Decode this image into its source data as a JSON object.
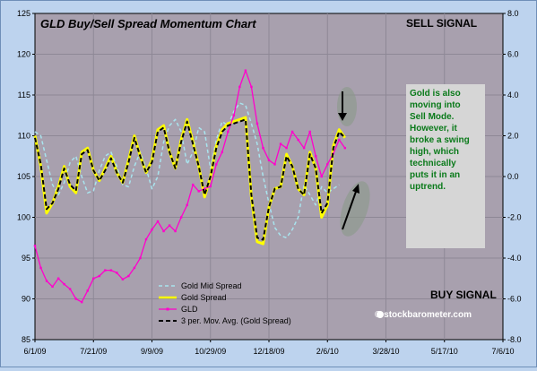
{
  "chart_data": {
    "type": "line",
    "title": "GLD Buy/Sell Spread Momentum Chart",
    "x_ticks": [
      "6/1/09",
      "7/21/09",
      "9/9/09",
      "10/29/09",
      "12/18/09",
      "2/6/10",
      "3/28/10",
      "5/17/10",
      "7/6/10"
    ],
    "x_range": [
      "6/1/09",
      "7/6/10"
    ],
    "y_left": {
      "ticks": [
        85,
        90,
        95,
        100,
        105,
        110,
        115,
        120,
        125
      ],
      "range": [
        85,
        125
      ]
    },
    "y_right": {
      "ticks": [
        "-8.0",
        "-6.0",
        "-4.0",
        "-2.0",
        "0.0",
        "2.0",
        "4.0",
        "6.0",
        "8.0"
      ],
      "range": [
        -8,
        8
      ]
    },
    "grid": true,
    "legend_position": "bottom-center",
    "annotations": {
      "sell_signal": "SELL SIGNAL",
      "buy_signal": "BUY SIGNAL",
      "note": "Gold is also moving into Sell Mode. However, it broke a swing high, which technically puts it in an uptrend.",
      "watermark": "© stockbarometer.com"
    },
    "series": [
      {
        "name": "Gold Mid Spread",
        "axis": "right",
        "color": "#a8e4ee",
        "dash": true,
        "x": [
          "6/1/09",
          "6/6/09",
          "6/11/09",
          "6/16/09",
          "6/21/09",
          "6/26/09",
          "7/1/09",
          "7/6/09",
          "7/11/09",
          "7/16/09",
          "7/21/09",
          "7/26/09",
          "7/31/09",
          "8/5/09",
          "8/10/09",
          "8/15/09",
          "8/20/09",
          "8/25/09",
          "8/30/09",
          "9/4/09",
          "9/9/09",
          "9/14/09",
          "9/19/09",
          "9/24/09",
          "9/29/09",
          "10/4/09",
          "10/9/09",
          "10/14/09",
          "10/19/09",
          "10/24/09",
          "10/29/09",
          "11/3/09",
          "11/8/09",
          "11/13/09",
          "11/18/09",
          "11/23/09",
          "11/28/09",
          "12/3/09",
          "12/8/09",
          "12/13/09",
          "12/18/09",
          "12/23/09",
          "12/28/09",
          "1/2/10",
          "1/7/10",
          "1/12/10",
          "1/17/10",
          "1/22/10",
          "1/27/10",
          "2/1/10",
          "2/6/10",
          "2/11/10",
          "2/16/10"
        ],
        "y": [
          2.2,
          2.0,
          0.8,
          -0.4,
          -0.9,
          -0.3,
          0.7,
          1.0,
          0.0,
          -0.8,
          -0.7,
          0.3,
          1.0,
          1.2,
          0.5,
          -0.4,
          -0.5,
          0.5,
          1.2,
          0.4,
          -0.6,
          0.0,
          1.7,
          2.5,
          2.8,
          2.2,
          0.6,
          1.2,
          2.4,
          2.2,
          0.4,
          1.8,
          2.7,
          2.5,
          3.2,
          3.6,
          3.5,
          2.6,
          1.6,
          0.0,
          -1.3,
          -2.5,
          -2.9,
          -3.0,
          -2.6,
          -2.0,
          -0.4,
          -0.9,
          -1.4,
          -0.5,
          -0.8,
          -0.6,
          -0.4
        ]
      },
      {
        "name": "Gold  Spread",
        "axis": "right",
        "color": "#ffff00",
        "dash": false,
        "x": [
          "6/1/09",
          "6/6/09",
          "6/11/09",
          "6/16/09",
          "6/21/09",
          "6/26/09",
          "7/1/09",
          "7/6/09",
          "7/11/09",
          "7/16/09",
          "7/21/09",
          "7/26/09",
          "7/31/09",
          "8/5/09",
          "8/10/09",
          "8/15/09",
          "8/20/09",
          "8/25/09",
          "8/30/09",
          "9/4/09",
          "9/9/09",
          "9/14/09",
          "9/19/09",
          "9/24/09",
          "9/29/09",
          "10/4/09",
          "10/9/09",
          "10/14/09",
          "10/19/09",
          "10/24/09",
          "10/29/09",
          "11/3/09",
          "11/8/09",
          "11/13/09",
          "11/18/09",
          "11/23/09",
          "11/28/09",
          "12/3/09",
          "12/8/09",
          "12/13/09",
          "12/18/09",
          "12/23/09",
          "12/28/09",
          "1/2/10",
          "1/7/10",
          "1/12/10",
          "1/17/10",
          "1/22/10",
          "1/27/10",
          "2/1/10",
          "2/6/10",
          "2/11/10",
          "2/16/10",
          "2/21/10"
        ],
        "y": [
          2.0,
          0.5,
          -1.8,
          -1.3,
          -0.5,
          0.5,
          -0.5,
          -0.8,
          1.2,
          1.4,
          0.3,
          -0.2,
          0.4,
          1.0,
          0.2,
          -0.3,
          0.8,
          2.0,
          1.0,
          0.2,
          0.8,
          2.3,
          2.5,
          1.2,
          0.4,
          1.8,
          2.8,
          1.7,
          0.5,
          -1.0,
          0.0,
          1.5,
          2.3,
          2.6,
          2.7,
          2.8,
          2.9,
          -1.0,
          -3.2,
          -3.3,
          -1.5,
          -0.6,
          -0.5,
          1.1,
          0.5,
          -0.6,
          -0.9,
          1.2,
          0.4,
          -2.0,
          -1.4,
          1.5,
          2.3,
          1.9
        ]
      },
      {
        "name": "GLD",
        "axis": "left",
        "color": "#ff00cc",
        "dash": false,
        "x": [
          "6/1/09",
          "6/6/09",
          "6/11/09",
          "6/16/09",
          "6/21/09",
          "6/26/09",
          "7/1/09",
          "7/6/09",
          "7/11/09",
          "7/16/09",
          "7/21/09",
          "7/26/09",
          "7/31/09",
          "8/5/09",
          "8/10/09",
          "8/15/09",
          "8/20/09",
          "8/25/09",
          "8/30/09",
          "9/4/09",
          "9/9/09",
          "9/14/09",
          "9/19/09",
          "9/24/09",
          "9/29/09",
          "10/4/09",
          "10/9/09",
          "10/14/09",
          "10/19/09",
          "10/24/09",
          "10/29/09",
          "11/3/09",
          "11/8/09",
          "11/13/09",
          "11/18/09",
          "11/23/09",
          "11/28/09",
          "12/3/09",
          "12/8/09",
          "12/13/09",
          "12/18/09",
          "12/23/09",
          "12/28/09",
          "1/2/10",
          "1/7/10",
          "1/12/10",
          "1/17/10",
          "1/22/10",
          "1/27/10",
          "2/1/10",
          "2/6/10",
          "2/11/10",
          "2/16/10",
          "2/21/10"
        ],
        "y": [
          96.5,
          93.8,
          92.2,
          91.5,
          92.5,
          91.8,
          91.2,
          90.0,
          89.6,
          91.0,
          92.5,
          92.8,
          93.5,
          93.5,
          93.2,
          92.4,
          92.8,
          93.8,
          95.0,
          97.3,
          98.5,
          99.5,
          98.3,
          99.0,
          98.3,
          100.0,
          101.5,
          104.0,
          103.2,
          103.5,
          103.8,
          106.5,
          108.0,
          110.5,
          112.5,
          116.0,
          118.0,
          116.0,
          111.5,
          108.5,
          107.0,
          106.5,
          109.0,
          108.5,
          110.5,
          109.5,
          108.5,
          110.5,
          107.5,
          105.0,
          106.5,
          107.8,
          109.5,
          108.5
        ]
      },
      {
        "name": "3 per. Mov. Avg. (Gold  Spread)",
        "axis": "right",
        "color": "#000000",
        "dash": true,
        "x": [
          "6/1/09",
          "6/6/09",
          "6/11/09",
          "6/16/09",
          "6/21/09",
          "6/26/09",
          "7/1/09",
          "7/6/09",
          "7/11/09",
          "7/16/09",
          "7/21/09",
          "7/26/09",
          "7/31/09",
          "8/5/09",
          "8/10/09",
          "8/15/09",
          "8/20/09",
          "8/25/09",
          "8/30/09",
          "9/4/09",
          "9/9/09",
          "9/14/09",
          "9/19/09",
          "9/24/09",
          "9/29/09",
          "10/4/09",
          "10/9/09",
          "10/14/09",
          "10/19/09",
          "10/24/09",
          "10/29/09",
          "11/3/09",
          "11/8/09",
          "11/13/09",
          "11/18/09",
          "11/23/09",
          "11/28/09",
          "12/3/09",
          "12/8/09",
          "12/13/09",
          "12/18/09",
          "12/23/09",
          "12/28/09",
          "1/2/10",
          "1/7/10",
          "1/12/10",
          "1/17/10",
          "1/22/10",
          "1/27/10",
          "2/1/10",
          "2/6/10",
          "2/11/10",
          "2/16/10",
          "2/21/10"
        ],
        "y": [
          1.9,
          0.6,
          -1.6,
          -1.3,
          -0.6,
          0.4,
          -0.4,
          -0.7,
          1.1,
          1.3,
          0.3,
          -0.2,
          0.3,
          0.9,
          0.2,
          -0.3,
          0.7,
          1.9,
          1.0,
          0.2,
          0.7,
          2.2,
          2.4,
          1.2,
          0.4,
          1.7,
          2.7,
          1.6,
          0.5,
          -0.9,
          0.0,
          1.4,
          2.2,
          2.5,
          2.6,
          2.7,
          2.8,
          -0.9,
          -3.0,
          -3.1,
          -1.5,
          -0.6,
          -0.5,
          1.0,
          0.5,
          -0.6,
          -0.9,
          1.1,
          0.4,
          -1.8,
          -1.3,
          1.4,
          2.2,
          1.9
        ]
      }
    ]
  }
}
